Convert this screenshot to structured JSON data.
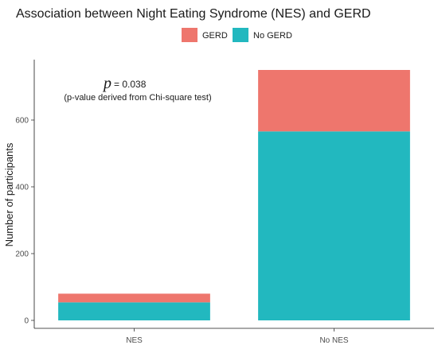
{
  "chart_data": {
    "type": "bar",
    "stacked": true,
    "title": "Association between Night Eating Syndrome (NES) and GERD",
    "xlabel": "",
    "ylabel": "Number of participants",
    "categories": [
      "NES",
      "No NES"
    ],
    "series": [
      {
        "name": "No GERD",
        "color": "#22B8BF",
        "values": [
          54,
          566
        ]
      },
      {
        "name": "GERD",
        "color": "#EE766D",
        "values": [
          26,
          184
        ]
      }
    ],
    "ylim": [
      0,
      800
    ],
    "yticks": [
      0,
      200,
      400,
      600
    ],
    "ytick_labels": [
      "0",
      "200",
      "400",
      "600"
    ],
    "legend": {
      "placement": "top",
      "order": [
        "GERD",
        "No GERD"
      ]
    },
    "grid": false,
    "annotation": {
      "p_symbol": "p",
      "p_value": "= 0.038",
      "note": "(p-value derived from Chi-square test)"
    }
  }
}
